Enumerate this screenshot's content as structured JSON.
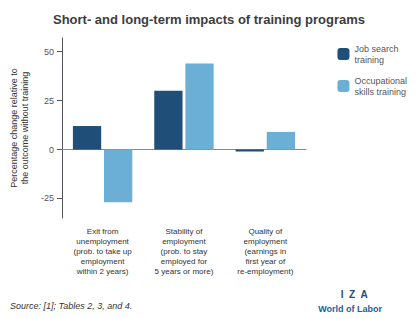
{
  "chart_data": {
    "type": "bar",
    "title": "Short- and long-term impacts of training programs",
    "ylabel": "Percentage change relative to\nthe outcome without training",
    "categories": [
      "Exit from\nunemployment\n(prob. to take up\nemployment\nwithin 2 years)",
      "Stability of\nemployment\n(prob. to stay\nemployed for\n5 years or more)",
      "Quality of\nemployment\n(earnings in\nfirst year of\nre-employment)"
    ],
    "series": [
      {
        "name": "Job search\ntraining",
        "color": "#1f4e79",
        "values": [
          12,
          30,
          -1
        ]
      },
      {
        "name": "Occupational\nskills training",
        "color": "#6baed6",
        "values": [
          -27,
          44,
          9
        ]
      }
    ],
    "ylim": [
      -35,
      57
    ],
    "yticks": [
      -25,
      0,
      25,
      50
    ],
    "grid": false,
    "legend": "right",
    "annotations": [
      "Source: [1]; Tables 2, 3, and 4.",
      "I  Z  A",
      "World of Labor"
    ]
  }
}
